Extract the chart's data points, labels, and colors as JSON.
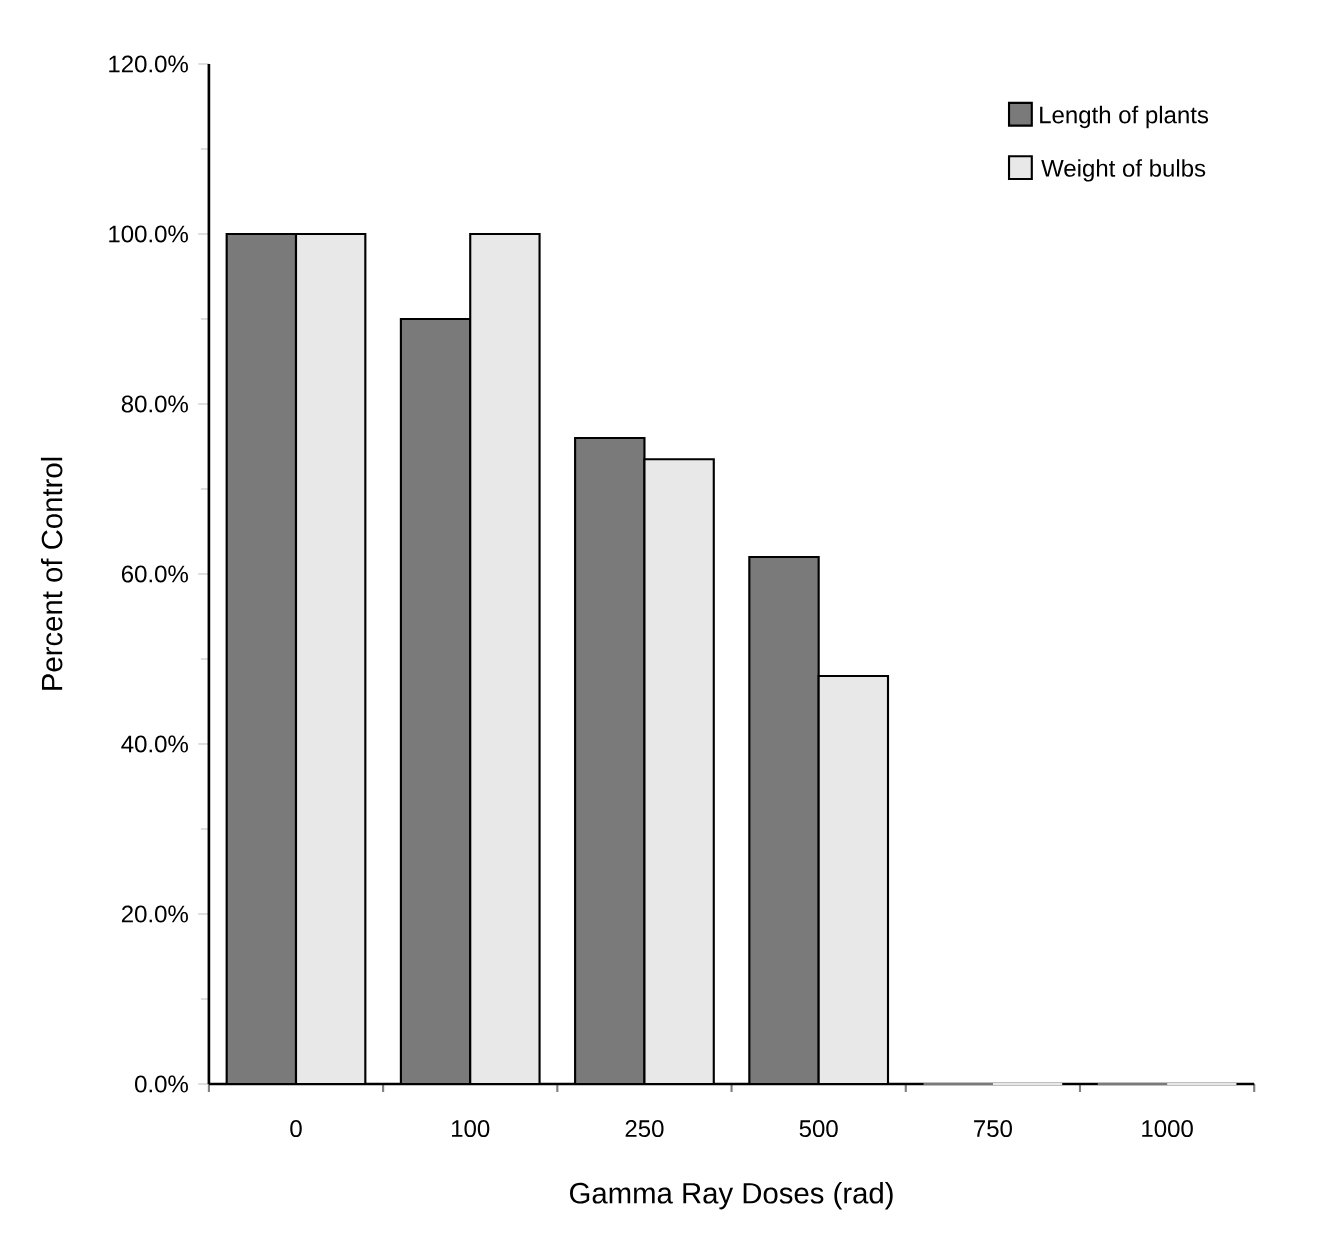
{
  "chart_data": {
    "type": "bar",
    "xlabel": "Gamma Ray Doses (rad)",
    "ylabel": "Percent of Control",
    "categories": [
      "0",
      "100",
      "250",
      "500",
      "750",
      "1000"
    ],
    "series": [
      {
        "name": "Length of plants",
        "color": "#7a7a7a",
        "values": [
          100,
          90,
          76,
          62,
          0,
          0
        ]
      },
      {
        "name": "Weight of bulbs",
        "color": "#e8e8e8",
        "values": [
          100,
          100,
          73.5,
          48,
          0,
          0
        ]
      }
    ],
    "ylim": [
      0,
      120
    ],
    "yticks": [
      {
        "value": 0,
        "label": "0.0%"
      },
      {
        "value": 20,
        "label": "20.0%"
      },
      {
        "value": 40,
        "label": "40.0%"
      },
      {
        "value": 60,
        "label": "60.0%"
      },
      {
        "value": 80,
        "label": "80.0%"
      },
      {
        "value": 100,
        "label": "100.0%"
      },
      {
        "value": 120,
        "label": "120.0%"
      }
    ],
    "grid": false,
    "legend": "top right"
  }
}
